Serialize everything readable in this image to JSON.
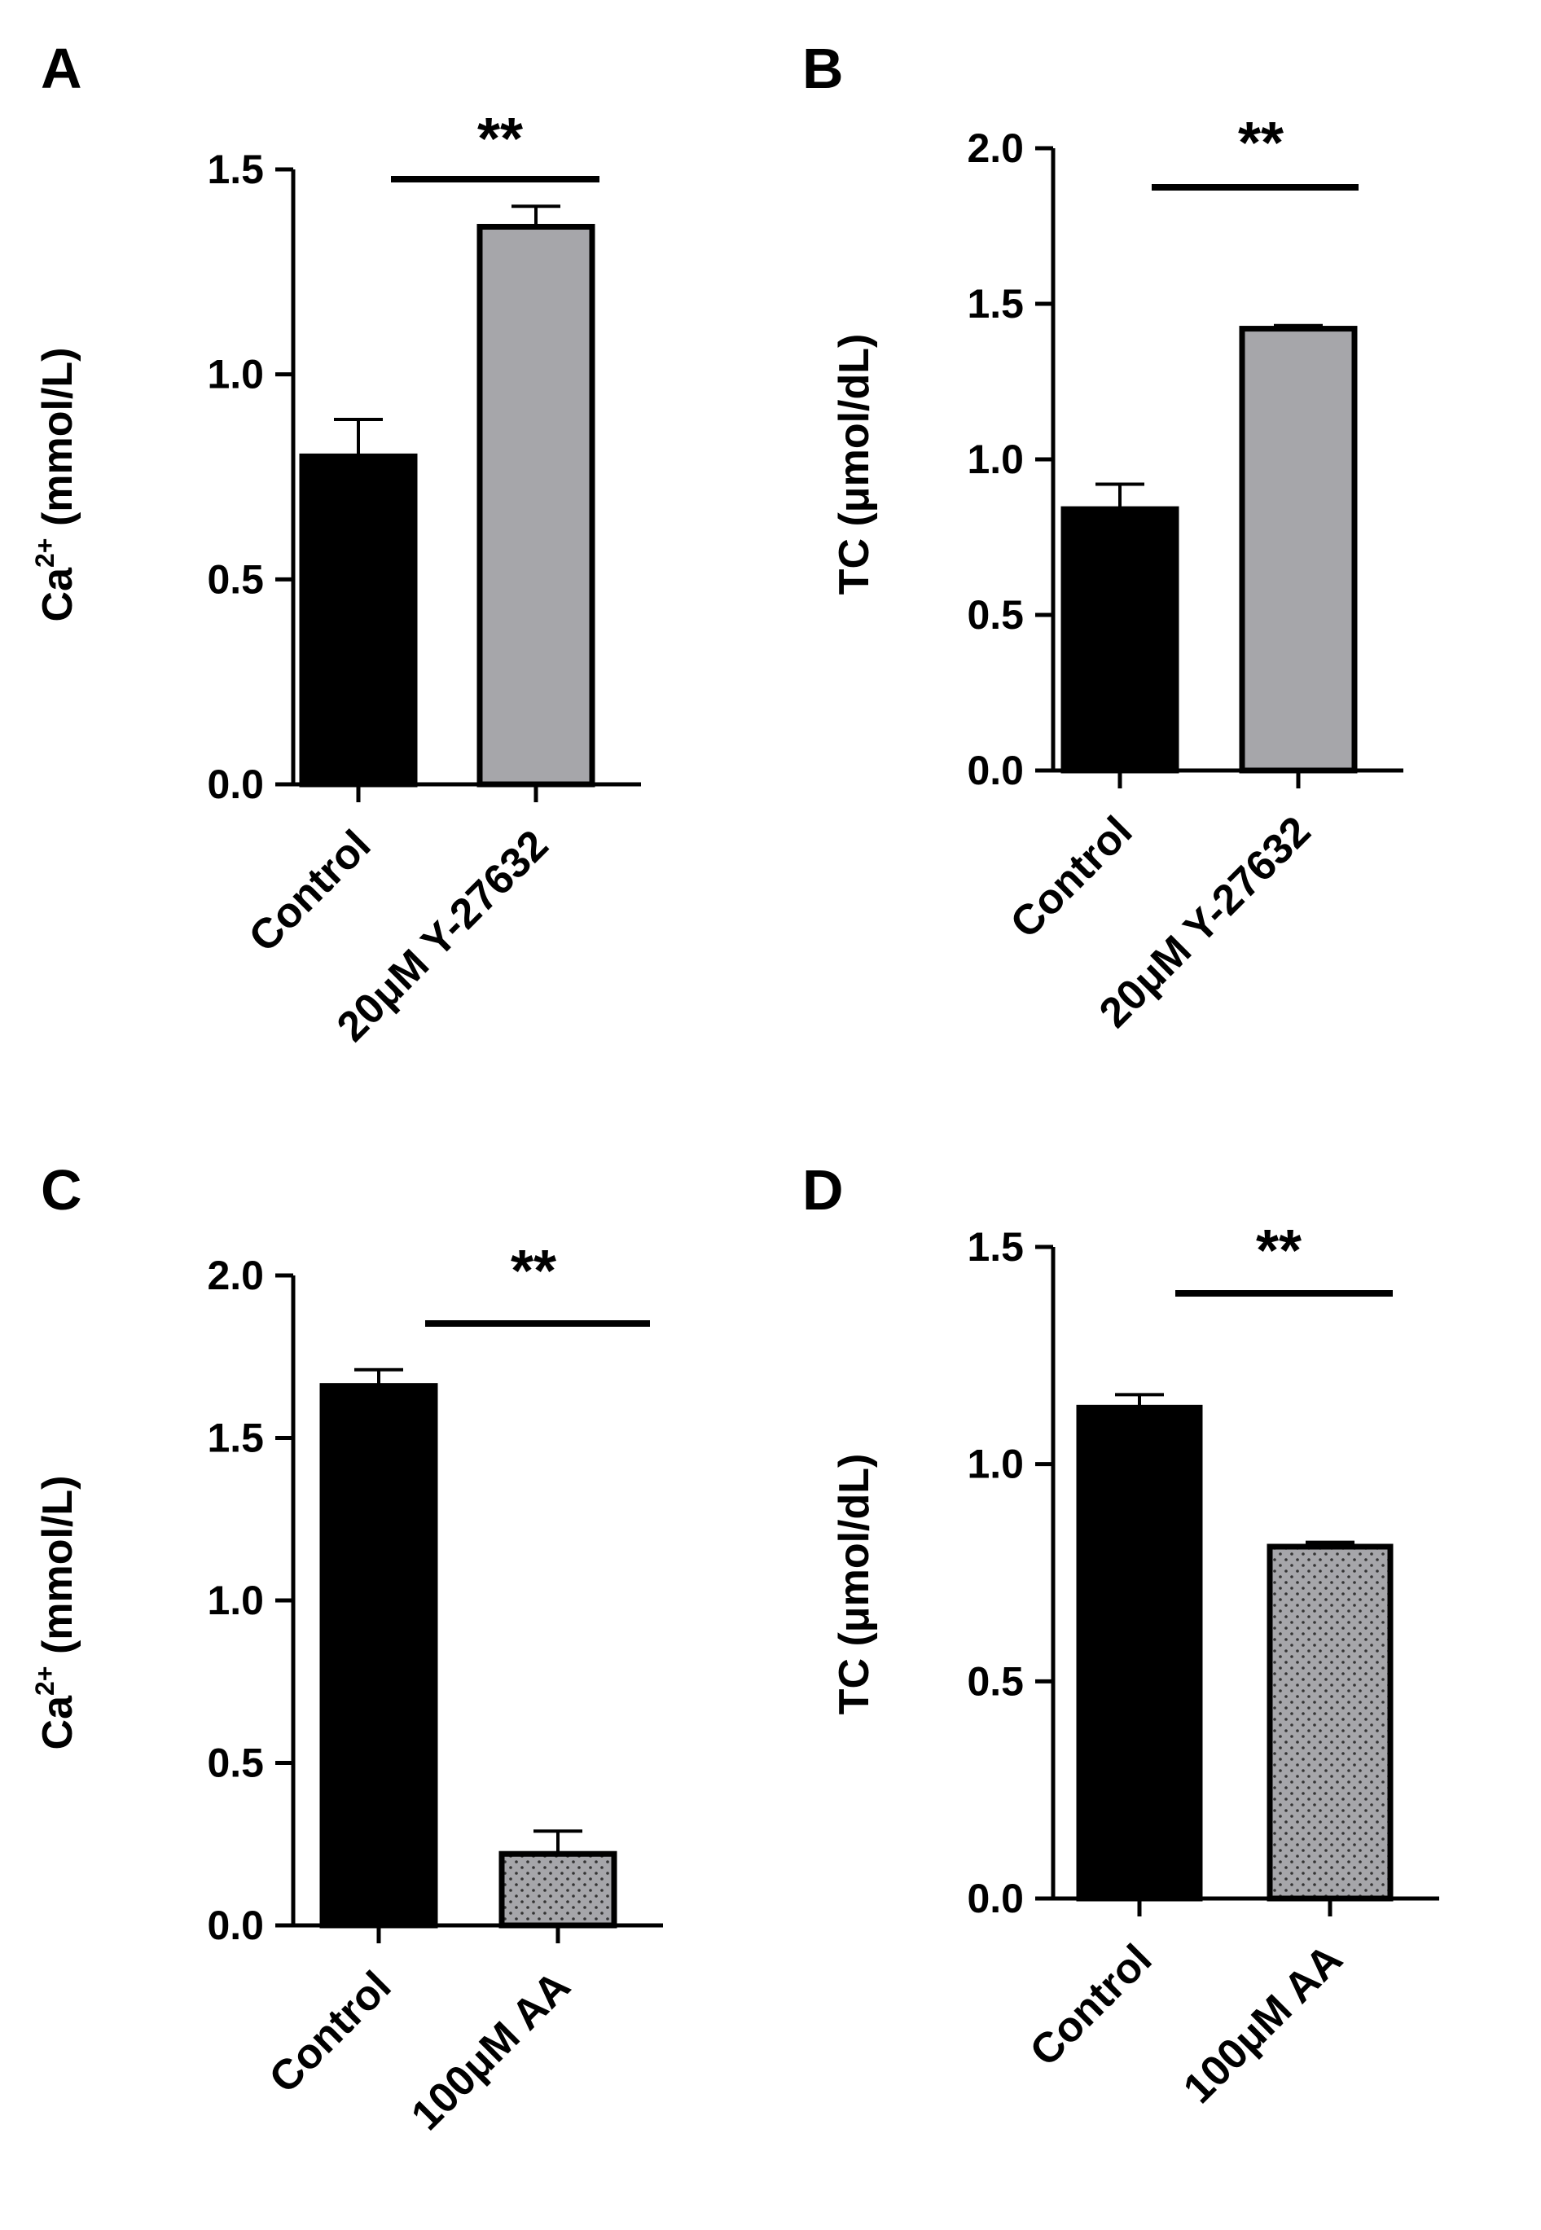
{
  "chart_data": [
    {
      "type": "bar",
      "panel": "A",
      "ylabel": "Ca2+ (mmol/L)",
      "ylabel_base": "Ca",
      "ylabel_sup": "2+",
      "ylabel_rest": " (mmol/L)",
      "ylim": [
        0,
        1.5
      ],
      "yticks": [
        "0.0",
        "0.5",
        "1.0",
        "1.5"
      ],
      "ytick_values": [
        0,
        0.5,
        1.0,
        1.5
      ],
      "categories": [
        "Control",
        "20μM Y-27632"
      ],
      "values": [
        0.8,
        1.36
      ],
      "errors": [
        0.09,
        0.05
      ],
      "fills": [
        "#000000",
        "#a6a6aa"
      ],
      "patterns": [
        "solid",
        "solid"
      ],
      "significance": "**"
    },
    {
      "type": "bar",
      "panel": "B",
      "ylabel": "TC (μmol/dL)",
      "ylabel_base": "TC (μmol/dL)",
      "ylabel_sup": "",
      "ylabel_rest": "",
      "ylim": [
        0,
        2.0
      ],
      "yticks": [
        "0.0",
        "0.5",
        "1.0",
        "1.5",
        "2.0"
      ],
      "ytick_values": [
        0,
        0.5,
        1.0,
        1.5,
        2.0
      ],
      "categories": [
        "Control",
        "20μM Y-27632"
      ],
      "values": [
        0.84,
        1.42
      ],
      "errors": [
        0.08,
        0.01
      ],
      "fills": [
        "#000000",
        "#a6a6aa"
      ],
      "patterns": [
        "solid",
        "solid"
      ],
      "significance": "**"
    },
    {
      "type": "bar",
      "panel": "C",
      "ylabel": "Ca2+ (mmol/L)",
      "ylabel_base": "Ca",
      "ylabel_sup": "2+",
      "ylabel_rest": " (mmol/L)",
      "ylim": [
        0,
        2.0
      ],
      "yticks": [
        "0.0",
        "0.5",
        "1.0",
        "1.5",
        "2.0"
      ],
      "ytick_values": [
        0,
        0.5,
        1.0,
        1.5,
        2.0
      ],
      "categories": [
        "Control",
        "100μM AA"
      ],
      "values": [
        1.66,
        0.22
      ],
      "errors": [
        0.05,
        0.07
      ],
      "fills": [
        "#000000",
        "#a6a6aa"
      ],
      "patterns": [
        "solid",
        "dots"
      ],
      "significance": "**"
    },
    {
      "type": "bar",
      "panel": "D",
      "ylabel": "TC (μmol/dL)",
      "ylabel_base": "TC (μmol/dL)",
      "ylabel_sup": "",
      "ylabel_rest": "",
      "ylim": [
        0,
        1.5
      ],
      "yticks": [
        "0.0",
        "0.5",
        "1.0",
        "1.5"
      ],
      "ytick_values": [
        0,
        0.5,
        1.0,
        1.5
      ],
      "categories": [
        "Control",
        "100μM AA"
      ],
      "values": [
        1.13,
        0.81
      ],
      "errors": [
        0.03,
        0.01
      ],
      "fills": [
        "#000000",
        "#a6a6aa"
      ],
      "patterns": [
        "solid",
        "dots"
      ],
      "significance": "**"
    }
  ]
}
